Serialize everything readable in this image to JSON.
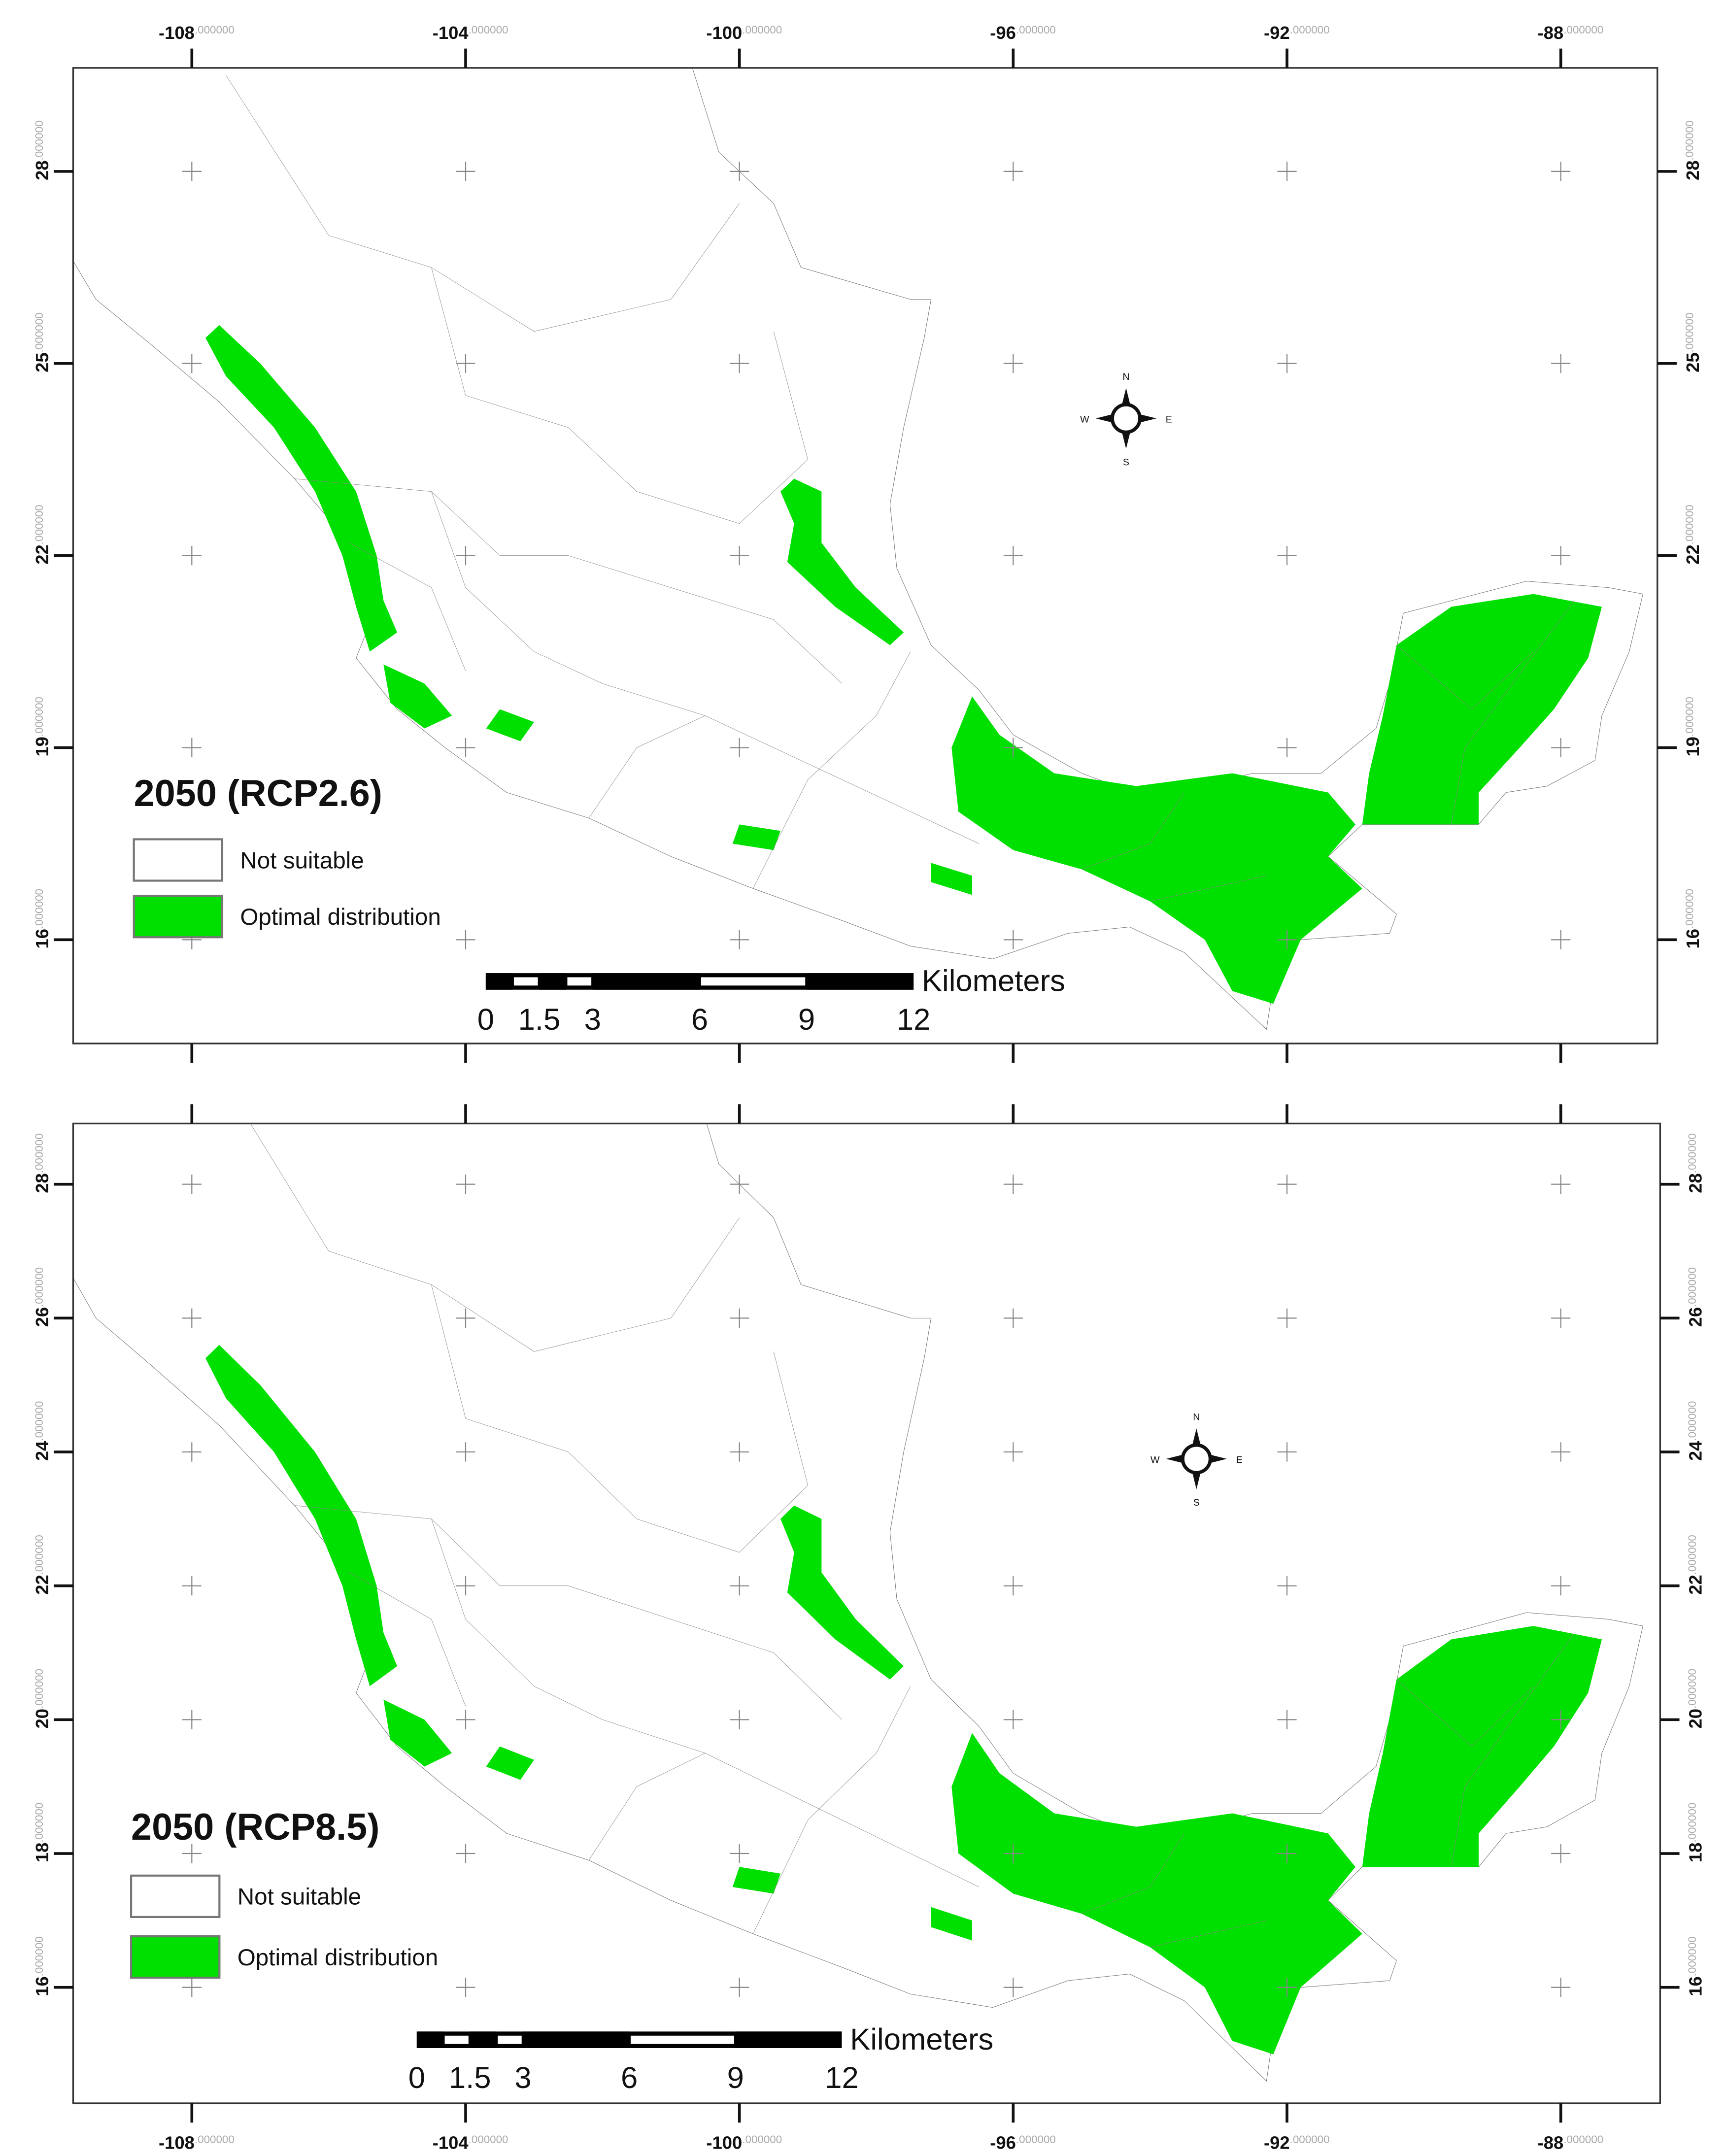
{
  "panels": [
    {
      "title": "2050 (RCP2.6)",
      "legend": [
        {
          "label": "Not suitable",
          "color": "#ffffff"
        },
        {
          "label": "Optimal distribution",
          "color": "#00e000"
        }
      ],
      "scale_bar": {
        "unit": "Kilometers",
        "ticks": [
          0,
          1.5,
          3,
          6,
          9,
          12
        ]
      },
      "compass": {
        "n": "N",
        "s": "S",
        "e": "E",
        "w": "W"
      },
      "x_ticks": [
        {
          "value": -108,
          "label": "-108",
          "decimals": ".000000"
        },
        {
          "value": -104,
          "label": "-104",
          "decimals": ".000000"
        },
        {
          "value": -100,
          "label": "-100",
          "decimals": ".000000"
        },
        {
          "value": -96,
          "label": "-96",
          "decimals": ".000000"
        },
        {
          "value": -92,
          "label": "-92",
          "decimals": ".000000"
        },
        {
          "value": -88,
          "label": "-88",
          "decimals": ".000000"
        }
      ],
      "y_ticks": [
        {
          "value": 28,
          "label": "28",
          "decimals": ".000000"
        },
        {
          "value": 25,
          "label": "25",
          "decimals": ".000000"
        },
        {
          "value": 22,
          "label": "22",
          "decimals": ".000000"
        },
        {
          "value": 19,
          "label": "19",
          "decimals": ".000000"
        },
        {
          "value": 16,
          "label": "16",
          "decimals": ".000000"
        }
      ]
    },
    {
      "title": "2050 (RCP8.5)",
      "legend": [
        {
          "label": "Not suitable",
          "color": "#ffffff"
        },
        {
          "label": "Optimal distribution",
          "color": "#00e000"
        }
      ],
      "scale_bar": {
        "unit": "Kilometers",
        "ticks": [
          0,
          1.5,
          3,
          6,
          9,
          12
        ]
      },
      "compass": {
        "n": "N",
        "s": "S",
        "e": "E",
        "w": "W"
      },
      "x_ticks": [
        {
          "value": -108,
          "label": "-108",
          "decimals": ".000000"
        },
        {
          "value": -104,
          "label": "-104",
          "decimals": ".000000"
        },
        {
          "value": -100,
          "label": "-100",
          "decimals": ".000000"
        },
        {
          "value": -96,
          "label": "-96",
          "decimals": ".000000"
        },
        {
          "value": -92,
          "label": "-92",
          "decimals": ".000000"
        },
        {
          "value": -88,
          "label": "-88",
          "decimals": ".000000"
        }
      ],
      "y_ticks": [
        {
          "value": 28,
          "label": "28",
          "decimals": ".000000"
        },
        {
          "value": 26,
          "label": "26",
          "decimals": ".000000"
        },
        {
          "value": 24,
          "label": "24",
          "decimals": ".000000"
        },
        {
          "value": 22,
          "label": "22",
          "decimals": ".000000"
        },
        {
          "value": 20,
          "label": "20",
          "decimals": ".000000"
        },
        {
          "value": 18,
          "label": "18",
          "decimals": ".000000"
        },
        {
          "value": 16,
          "label": "16",
          "decimals": ".000000"
        }
      ]
    }
  ]
}
